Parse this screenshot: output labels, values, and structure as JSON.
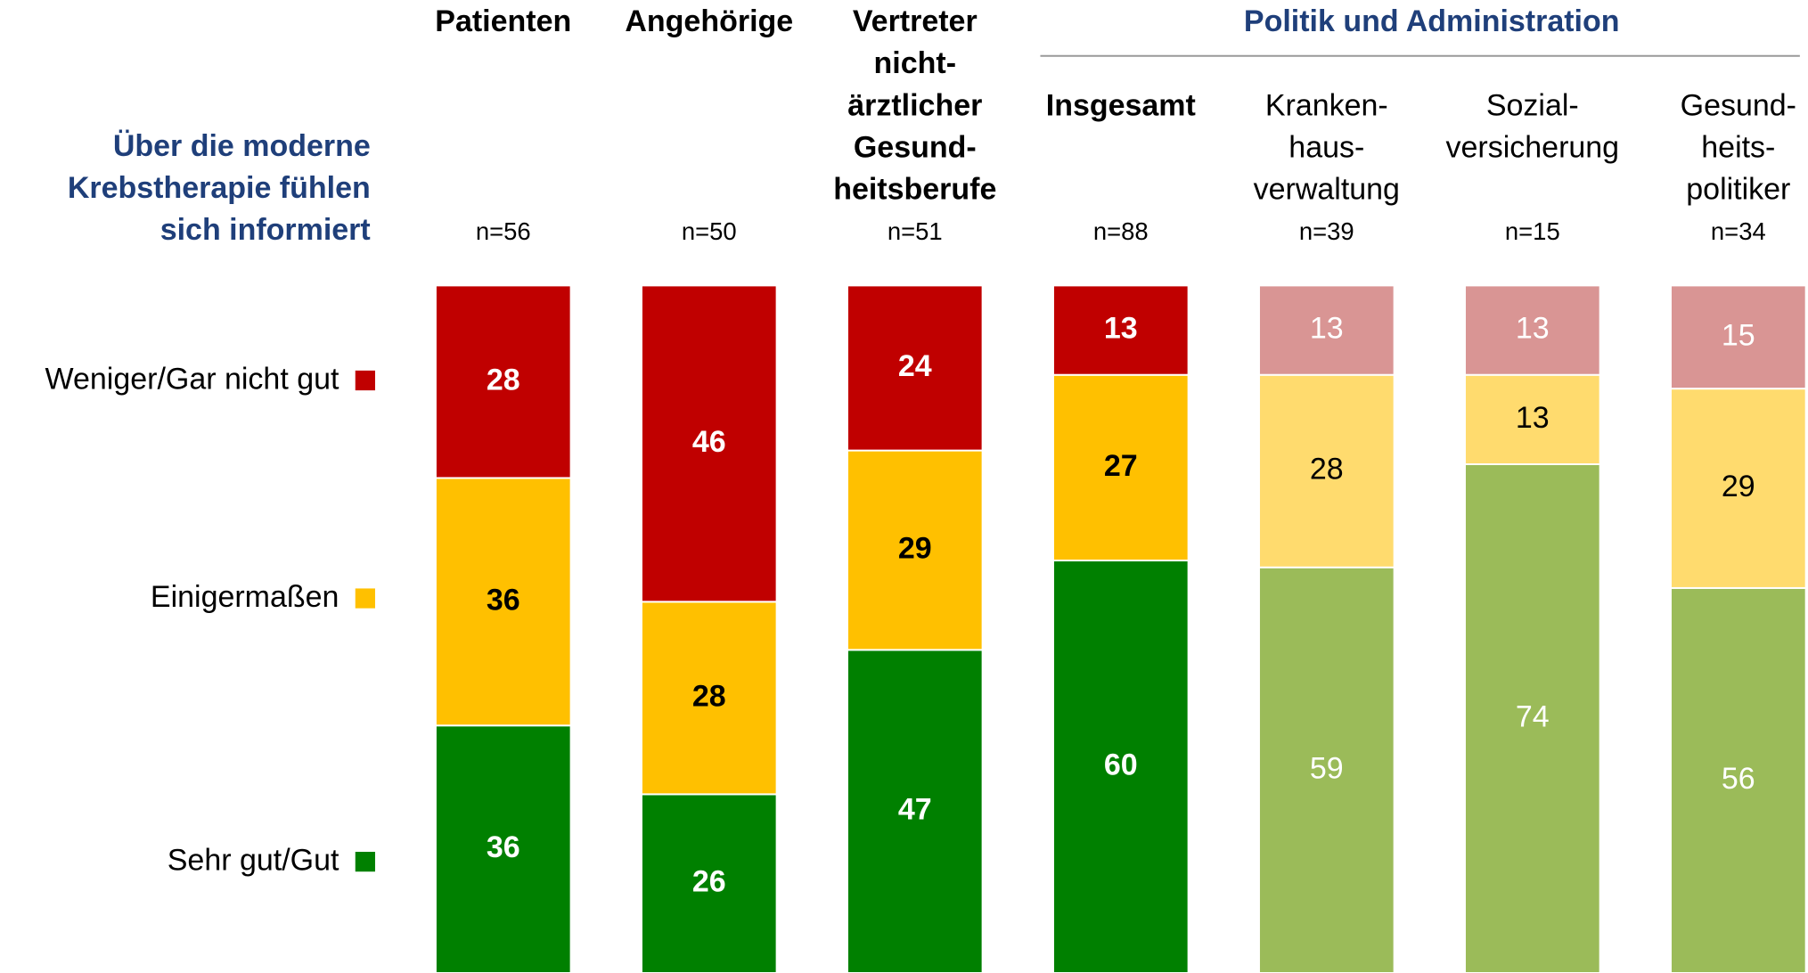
{
  "chart_data": {
    "type": "stacked_bar",
    "title": [
      "Über die moderne",
      "Krebstherapie fühlen",
      "sich informiert"
    ],
    "group_label": "Politik und Administration",
    "categories": [
      [
        "Patienten"
      ],
      [
        "Angehörige"
      ],
      [
        "Vertreter",
        "nicht-",
        "ärztlicher",
        "Gesund-",
        "heitsberufe"
      ],
      [
        "Insgesamt"
      ],
      [
        "Kranken-",
        "haus-",
        "verwaltung"
      ],
      [
        "Sozial-",
        "versicherung"
      ],
      [
        "Gesund-",
        "heits-",
        "politiker"
      ]
    ],
    "header_bold": [
      true,
      true,
      true,
      true,
      false,
      false,
      false
    ],
    "n_labels": [
      "n=56",
      "n=50",
      "n=51",
      "n=88",
      "n=39",
      "n=15",
      "n=34"
    ],
    "ylim": [
      0,
      100
    ],
    "series": [
      {
        "name": "Sehr gut/Gut",
        "color": "#008000",
        "colors": [
          "#008000",
          "#008000",
          "#008000",
          "#008000",
          "#9bbb59",
          "#9bbb59",
          "#9bbb59"
        ],
        "label_color": "#ffffff",
        "values": [
          36,
          26,
          47,
          60,
          59,
          74,
          56
        ]
      },
      {
        "name": "Einigermaßen",
        "color": "#ffc000",
        "colors": [
          "#ffc000",
          "#ffc000",
          "#ffc000",
          "#ffc000",
          "#ffdb6e",
          "#ffdb6e",
          "#ffdb6e"
        ],
        "label_color": "#000000",
        "values": [
          36,
          28,
          29,
          27,
          28,
          13,
          29
        ]
      },
      {
        "name": "Weniger/Gar nicht gut",
        "color": "#c00000",
        "colors": [
          "#c00000",
          "#c00000",
          "#c00000",
          "#c00000",
          "#d99594",
          "#d99594",
          "#d99594"
        ],
        "label_color": "#ffffff",
        "values": [
          28,
          46,
          24,
          13,
          13,
          13,
          15
        ]
      }
    ]
  }
}
